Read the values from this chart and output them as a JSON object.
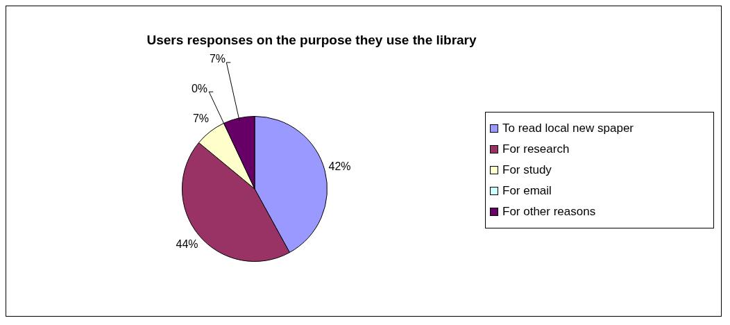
{
  "chart_data": {
    "type": "pie",
    "title": "Users responses on the purpose they use the library",
    "categories": [
      "To read local new spaper",
      "For research",
      "For study",
      "For email",
      "For other reasons"
    ],
    "values": [
      42,
      44,
      7,
      0,
      7
    ],
    "colors": [
      "#9999ff",
      "#993366",
      "#ffffcc",
      "#ccffff",
      "#660066"
    ],
    "value_labels": [
      "42%",
      "44%",
      "7%",
      "0%",
      "7%"
    ],
    "legend": "right"
  }
}
